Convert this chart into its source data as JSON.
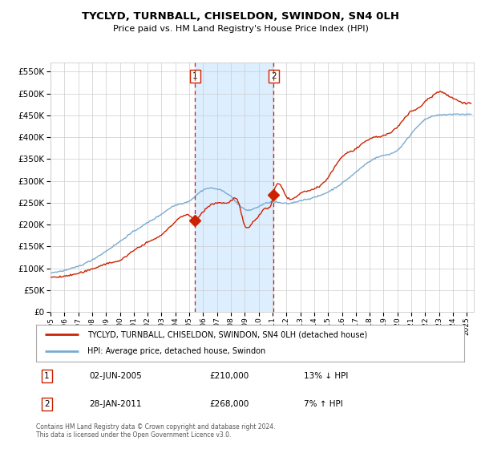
{
  "title": "TYCLYD, TURNBALL, CHISELDON, SWINDON, SN4 0LH",
  "subtitle": "Price paid vs. HM Land Registry's House Price Index (HPI)",
  "legend_line1": "TYCLYD, TURNBALL, CHISELDON, SWINDON, SN4 0LH (detached house)",
  "legend_line2": "HPI: Average price, detached house, Swindon",
  "annotation1_date": "02-JUN-2005",
  "annotation1_price": "£210,000",
  "annotation1_hpi": "13% ↓ HPI",
  "annotation2_date": "28-JAN-2011",
  "annotation2_price": "£268,000",
  "annotation2_hpi": "7% ↑ HPI",
  "footer": "Contains HM Land Registry data © Crown copyright and database right 2024.\nThis data is licensed under the Open Government Licence v3.0.",
  "marker1_x": 2005.42,
  "marker1_y": 210000,
  "marker2_x": 2011.08,
  "marker2_y": 268000,
  "vline1_x": 2005.42,
  "vline2_x": 2011.08,
  "shade_x1": 2005.42,
  "shade_x2": 2011.08,
  "ylim": [
    0,
    570000
  ],
  "xlim_start": 1995.0,
  "xlim_end": 2025.5,
  "red_color": "#cc2200",
  "blue_color": "#7aaad0",
  "shade_color": "#ddeeff",
  "background_color": "#ffffff",
  "grid_color": "#cccccc",
  "yticks": [
    0,
    50000,
    100000,
    150000,
    200000,
    250000,
    300000,
    350000,
    400000,
    450000,
    500000,
    550000
  ],
  "xticks": [
    1995,
    1996,
    1997,
    1998,
    1999,
    2000,
    2001,
    2002,
    2003,
    2004,
    2005,
    2006,
    2007,
    2008,
    2009,
    2010,
    2011,
    2012,
    2013,
    2014,
    2015,
    2016,
    2017,
    2018,
    2019,
    2020,
    2021,
    2022,
    2023,
    2024,
    2025
  ]
}
